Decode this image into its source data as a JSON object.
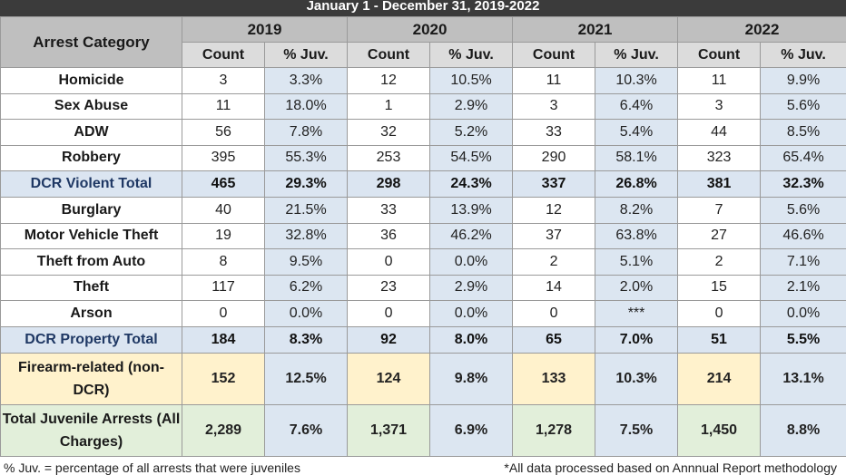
{
  "banner": {
    "title": "January 1 - December 31, 2019-2022"
  },
  "header": {
    "category_label": "Arrest Category",
    "years": [
      "2019",
      "2020",
      "2021",
      "2022"
    ],
    "sub_labels": [
      "Count",
      "% Juv.",
      "Count",
      "% Juv.",
      "Count",
      "% Juv.",
      "Count",
      "% Juv."
    ]
  },
  "rows": [
    {
      "category": "Homicide",
      "values": [
        "3",
        "3.3%",
        "12",
        "10.5%",
        "11",
        "10.3%",
        "11",
        "9.9%"
      ]
    },
    {
      "category": "Sex Abuse",
      "values": [
        "11",
        "18.0%",
        "1",
        "2.9%",
        "3",
        "6.4%",
        "3",
        "5.6%"
      ]
    },
    {
      "category": "ADW",
      "values": [
        "56",
        "7.8%",
        "32",
        "5.2%",
        "33",
        "5.4%",
        "44",
        "8.5%"
      ]
    },
    {
      "category": "Robbery",
      "values": [
        "395",
        "55.3%",
        "253",
        "54.5%",
        "290",
        "58.1%",
        "323",
        "65.4%"
      ]
    },
    {
      "category": "DCR Violent Total",
      "values": [
        "465",
        "29.3%",
        "298",
        "24.3%",
        "337",
        "26.8%",
        "381",
        "32.3%"
      ]
    },
    {
      "category": "Burglary",
      "values": [
        "40",
        "21.5%",
        "33",
        "13.9%",
        "12",
        "8.2%",
        "7",
        "5.6%"
      ]
    },
    {
      "category": "Motor Vehicle Theft",
      "values": [
        "19",
        "32.8%",
        "36",
        "46.2%",
        "37",
        "63.8%",
        "27",
        "46.6%"
      ]
    },
    {
      "category": "Theft from Auto",
      "values": [
        "8",
        "9.5%",
        "0",
        "0.0%",
        "2",
        "5.1%",
        "2",
        "7.1%"
      ]
    },
    {
      "category": "Theft",
      "values": [
        "117",
        "6.2%",
        "23",
        "2.9%",
        "14",
        "2.0%",
        "15",
        "2.1%"
      ]
    },
    {
      "category": "Arson",
      "values": [
        "0",
        "0.0%",
        "0",
        "0.0%",
        "0",
        "***",
        "0",
        "0.0%"
      ]
    },
    {
      "category": "DCR Property Total",
      "values": [
        "184",
        "8.3%",
        "92",
        "8.0%",
        "65",
        "7.0%",
        "51",
        "5.5%"
      ]
    },
    {
      "category": "Firearm-related (non-DCR)",
      "values": [
        "152",
        "12.5%",
        "124",
        "9.8%",
        "133",
        "10.3%",
        "214",
        "13.1%"
      ]
    },
    {
      "category": "Total Juvenile Arrests (All Charges)",
      "values": [
        "2,289",
        "7.6%",
        "1,371",
        "6.9%",
        "1,278",
        "7.5%",
        "1,450",
        "8.8%"
      ]
    }
  ],
  "footer": {
    "left": "% Juv. = percentage of all arrests that were juveniles",
    "right": "*All data processed based on Annnual Report methodology"
  }
}
